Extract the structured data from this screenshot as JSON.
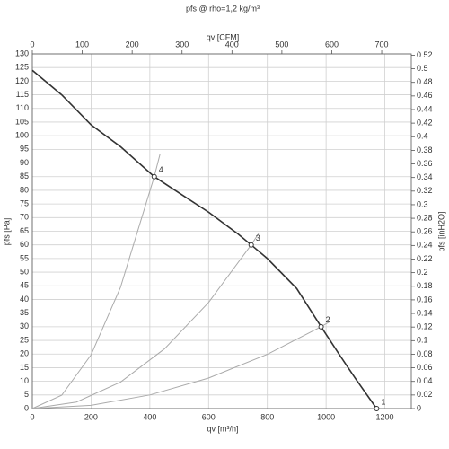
{
  "chart_data": {
    "type": "line",
    "title": "pfs @ rho=1,2 kg/m³",
    "xlabel": "qv [m³/h]",
    "x2label": "qv [CFM]",
    "ylabel": "pfs [Pa]",
    "y2label": "pfs [inH2O]",
    "xlim": [
      0,
      1290
    ],
    "xticks": [
      0,
      200,
      400,
      600,
      800,
      1000,
      1200
    ],
    "x2lim": [
      0,
      759.3
    ],
    "x2ticks": [
      0,
      100,
      200,
      300,
      400,
      500,
      600,
      700
    ],
    "ylim": [
      0,
      130
    ],
    "yticks": [
      0,
      5,
      10,
      15,
      20,
      25,
      30,
      35,
      40,
      45,
      50,
      55,
      60,
      65,
      70,
      75,
      80,
      85,
      90,
      95,
      100,
      105,
      110,
      115,
      120,
      125,
      130
    ],
    "y2lim": [
      0,
      0.5219
    ],
    "y2ticks": [
      0,
      0.02,
      0.04,
      0.06,
      0.08,
      0.1,
      0.12,
      0.14,
      0.16,
      0.18,
      0.2,
      0.22,
      0.24,
      0.26,
      0.28,
      0.3,
      0.32,
      0.34,
      0.36,
      0.38,
      0.4,
      0.42,
      0.44,
      0.46,
      0.48,
      0.5,
      0.52
    ],
    "grid": true,
    "series": [
      {
        "color": "#333333",
        "x": [
          0,
          100,
          200,
          300,
          415,
          500,
          600,
          700,
          745,
          800,
          900,
          983,
          1050,
          1100,
          1172
        ],
        "values": [
          124,
          115,
          104,
          96,
          85,
          79,
          72,
          64,
          60,
          55,
          44,
          30,
          19,
          11,
          0
        ]
      },
      {
        "color": "#aaaaaa",
        "x": [
          0,
          100,
          200,
          300,
          415,
          435
        ],
        "values": [
          0,
          4.9,
          19.7,
          44.4,
          85,
          93.4
        ]
      },
      {
        "color": "#aaaaaa",
        "x": [
          0,
          150,
          300,
          450,
          600,
          745,
          770
        ],
        "values": [
          0,
          2.4,
          9.7,
          21.9,
          38.9,
          60,
          64.1
        ]
      },
      {
        "color": "#aaaaaa",
        "x": [
          0,
          200,
          400,
          600,
          800,
          983,
          1010
        ],
        "values": [
          0,
          1.2,
          5,
          11.2,
          19.9,
          30,
          31.7
        ]
      }
    ],
    "points": {
      "labels": [
        "1",
        "2",
        "3",
        "4"
      ],
      "x": [
        1172,
        983,
        745,
        415
      ],
      "values": [
        0,
        30,
        60,
        85
      ]
    }
  }
}
